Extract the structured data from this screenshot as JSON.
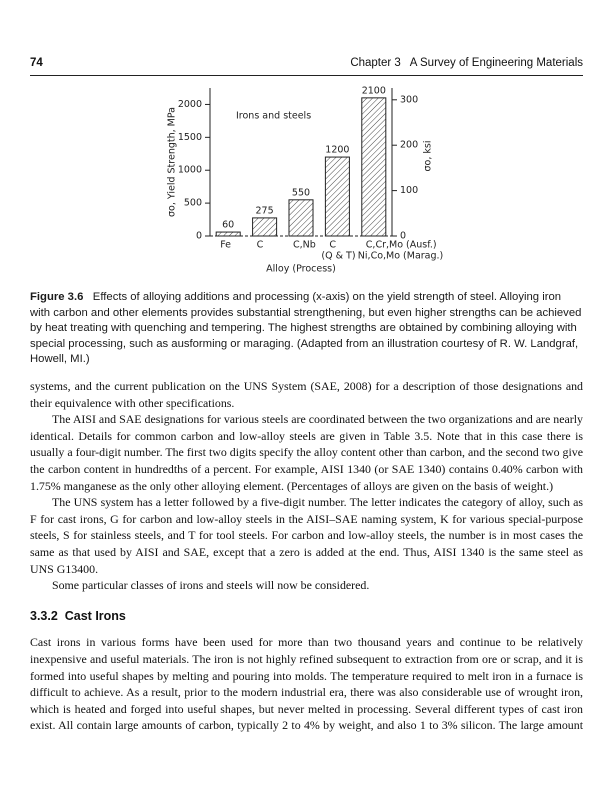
{
  "header": {
    "page_number": "74",
    "running_title": "Chapter 3   A Survey of Engineering Materials"
  },
  "chart_data": {
    "type": "bar",
    "annotation": "Irons and steels",
    "x_label": "Alloy (Process)",
    "y_label": "σo, Yield Strength, MPa",
    "y2_label": "σo, ksi",
    "categories": [
      "Fe",
      "C",
      "C,Nb",
      "C",
      "C,Cr,Mo (Ausf.)"
    ],
    "category_sublabels": [
      null,
      null,
      null,
      "(Q & T)",
      "Ni,Co,Mo (Marag.)"
    ],
    "values": [
      60,
      275,
      550,
      1200,
      2100
    ],
    "color": "#222222",
    "hatched": true,
    "ylim": [
      0,
      2250
    ],
    "yticks": [
      0,
      500,
      1000,
      1500,
      2000
    ],
    "y2lim": [
      0,
      326
    ],
    "y2ticks": [
      0,
      100,
      200,
      300
    ]
  },
  "figure": {
    "label": "Figure 3.6",
    "caption": "Effects of alloying additions and processing (x-axis) on the yield strength of steel. Alloying iron with carbon and other elements provides substantial strengthening, but even higher strengths can be achieved by heat treating with quenching and tempering. The highest strengths are obtained by combining alloying with special processing, such as ausforming or maraging. (Adapted from an illustration courtesy of R. W. Landgraf, Howell, MI.)"
  },
  "paragraphs": [
    "systems, and the current publication on the UNS System (SAE, 2008) for a description of those designations and their equivalence with other specifications.",
    "The AISI and SAE designations for various steels are coordinated between the two organizations and are nearly identical. Details for common carbon and low-alloy steels are given in Table 3.5. Note that in this case there is usually a four-digit number. The first two digits specify the alloy content other than carbon, and the second two give the carbon content in hundredths of a percent. For example, AISI 1340 (or SAE 1340) contains 0.40% carbon with 1.75% manganese as the only other alloying element. (Percentages of alloys are given on the basis of weight.)",
    "The UNS system has a letter followed by a five-digit number. The letter indicates the category of alloy, such as F for cast irons, G for carbon and low-alloy steels in the AISI–SAE naming system, K for various special-purpose steels, S for stainless steels, and T for tool steels. For carbon and low-alloy steels, the number is in most cases the same as that used by AISI and SAE, except that a zero is added at the end. Thus, AISI 1340 is the same steel as UNS G13400.",
    "Some particular classes of irons and steels will now be considered."
  ],
  "section": {
    "heading": "3.3.2  Cast Irons",
    "paragraphs": [
      "Cast irons in various forms have been used for more than two thousand years and continue to be relatively inexpensive and useful materials. The iron is not highly refined subsequent to extraction from ore or scrap, and it is formed into useful shapes by melting and pouring into molds. The temperature required to melt iron in a furnace is difficult to achieve. As a result, prior to the modern industrial era, there was also considerable use of wrought iron, which is heated and forged into useful shapes, but never melted in processing. Several different types of cast iron exist. All contain large amounts of carbon, typically 2 to 4% by weight, and also 1 to 3% silicon. The large amount"
    ]
  }
}
